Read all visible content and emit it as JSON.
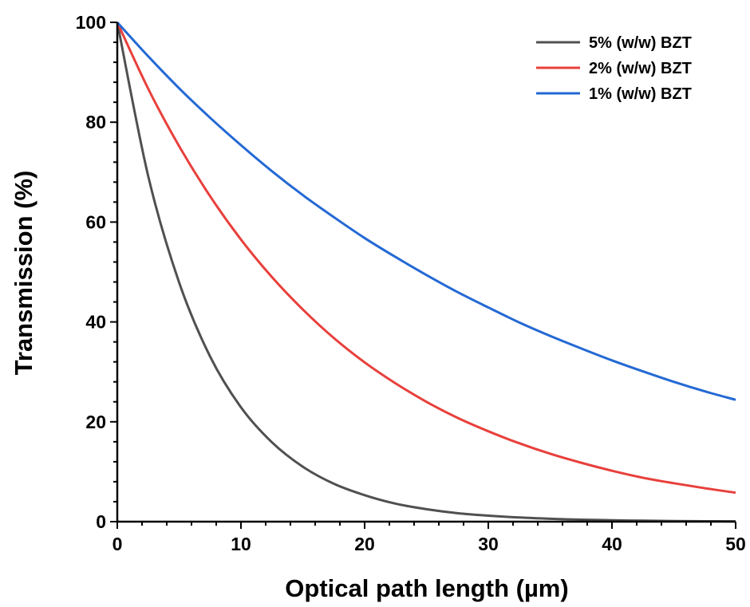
{
  "chart_data": {
    "type": "line",
    "title": "",
    "xlabel": "Optical path length (µm)",
    "ylabel": "Transmission (%)",
    "xlim": [
      0,
      50
    ],
    "ylim": [
      0,
      100
    ],
    "x_ticks": [
      "0",
      "10",
      "20",
      "30",
      "40",
      "50"
    ],
    "y_ticks": [
      "0",
      "20",
      "40",
      "60",
      "80",
      "100"
    ],
    "grid": false,
    "legend_position": "top-right",
    "x": [
      0,
      2.5,
      5,
      7.5,
      10,
      12.5,
      15,
      17.5,
      20,
      22.5,
      25,
      27.5,
      30,
      32.5,
      35,
      37.5,
      40,
      42.5,
      45,
      47.5,
      50
    ],
    "series": [
      {
        "name": "5% (w/w) BZT",
        "color": "#505050",
        "values": [
          100,
          69.2,
          47.9,
          33.1,
          22.9,
          15.9,
          11.0,
          7.6,
          5.3,
          3.6,
          2.5,
          1.7,
          1.2,
          0.83,
          0.58,
          0.4,
          0.28,
          0.19,
          0.13,
          0.09,
          0.06
        ]
      },
      {
        "name": "2% (w/w) BZT",
        "color": "#e8403c",
        "values": [
          100,
          86.7,
          75.2,
          65.2,
          56.5,
          49.0,
          42.5,
          36.8,
          31.9,
          27.7,
          24.0,
          20.8,
          18.1,
          15.7,
          13.6,
          11.8,
          10.2,
          8.8,
          7.7,
          6.7,
          5.8
        ]
      },
      {
        "name": "1% (w/w) BZT",
        "color": "#2469d4",
        "values": [
          100,
          93.2,
          86.8,
          80.9,
          75.4,
          70.2,
          65.4,
          61.0,
          56.8,
          53.0,
          49.4,
          46.0,
          42.9,
          39.9,
          37.2,
          34.7,
          32.3,
          30.1,
          28.0,
          26.1,
          24.4
        ]
      }
    ]
  }
}
